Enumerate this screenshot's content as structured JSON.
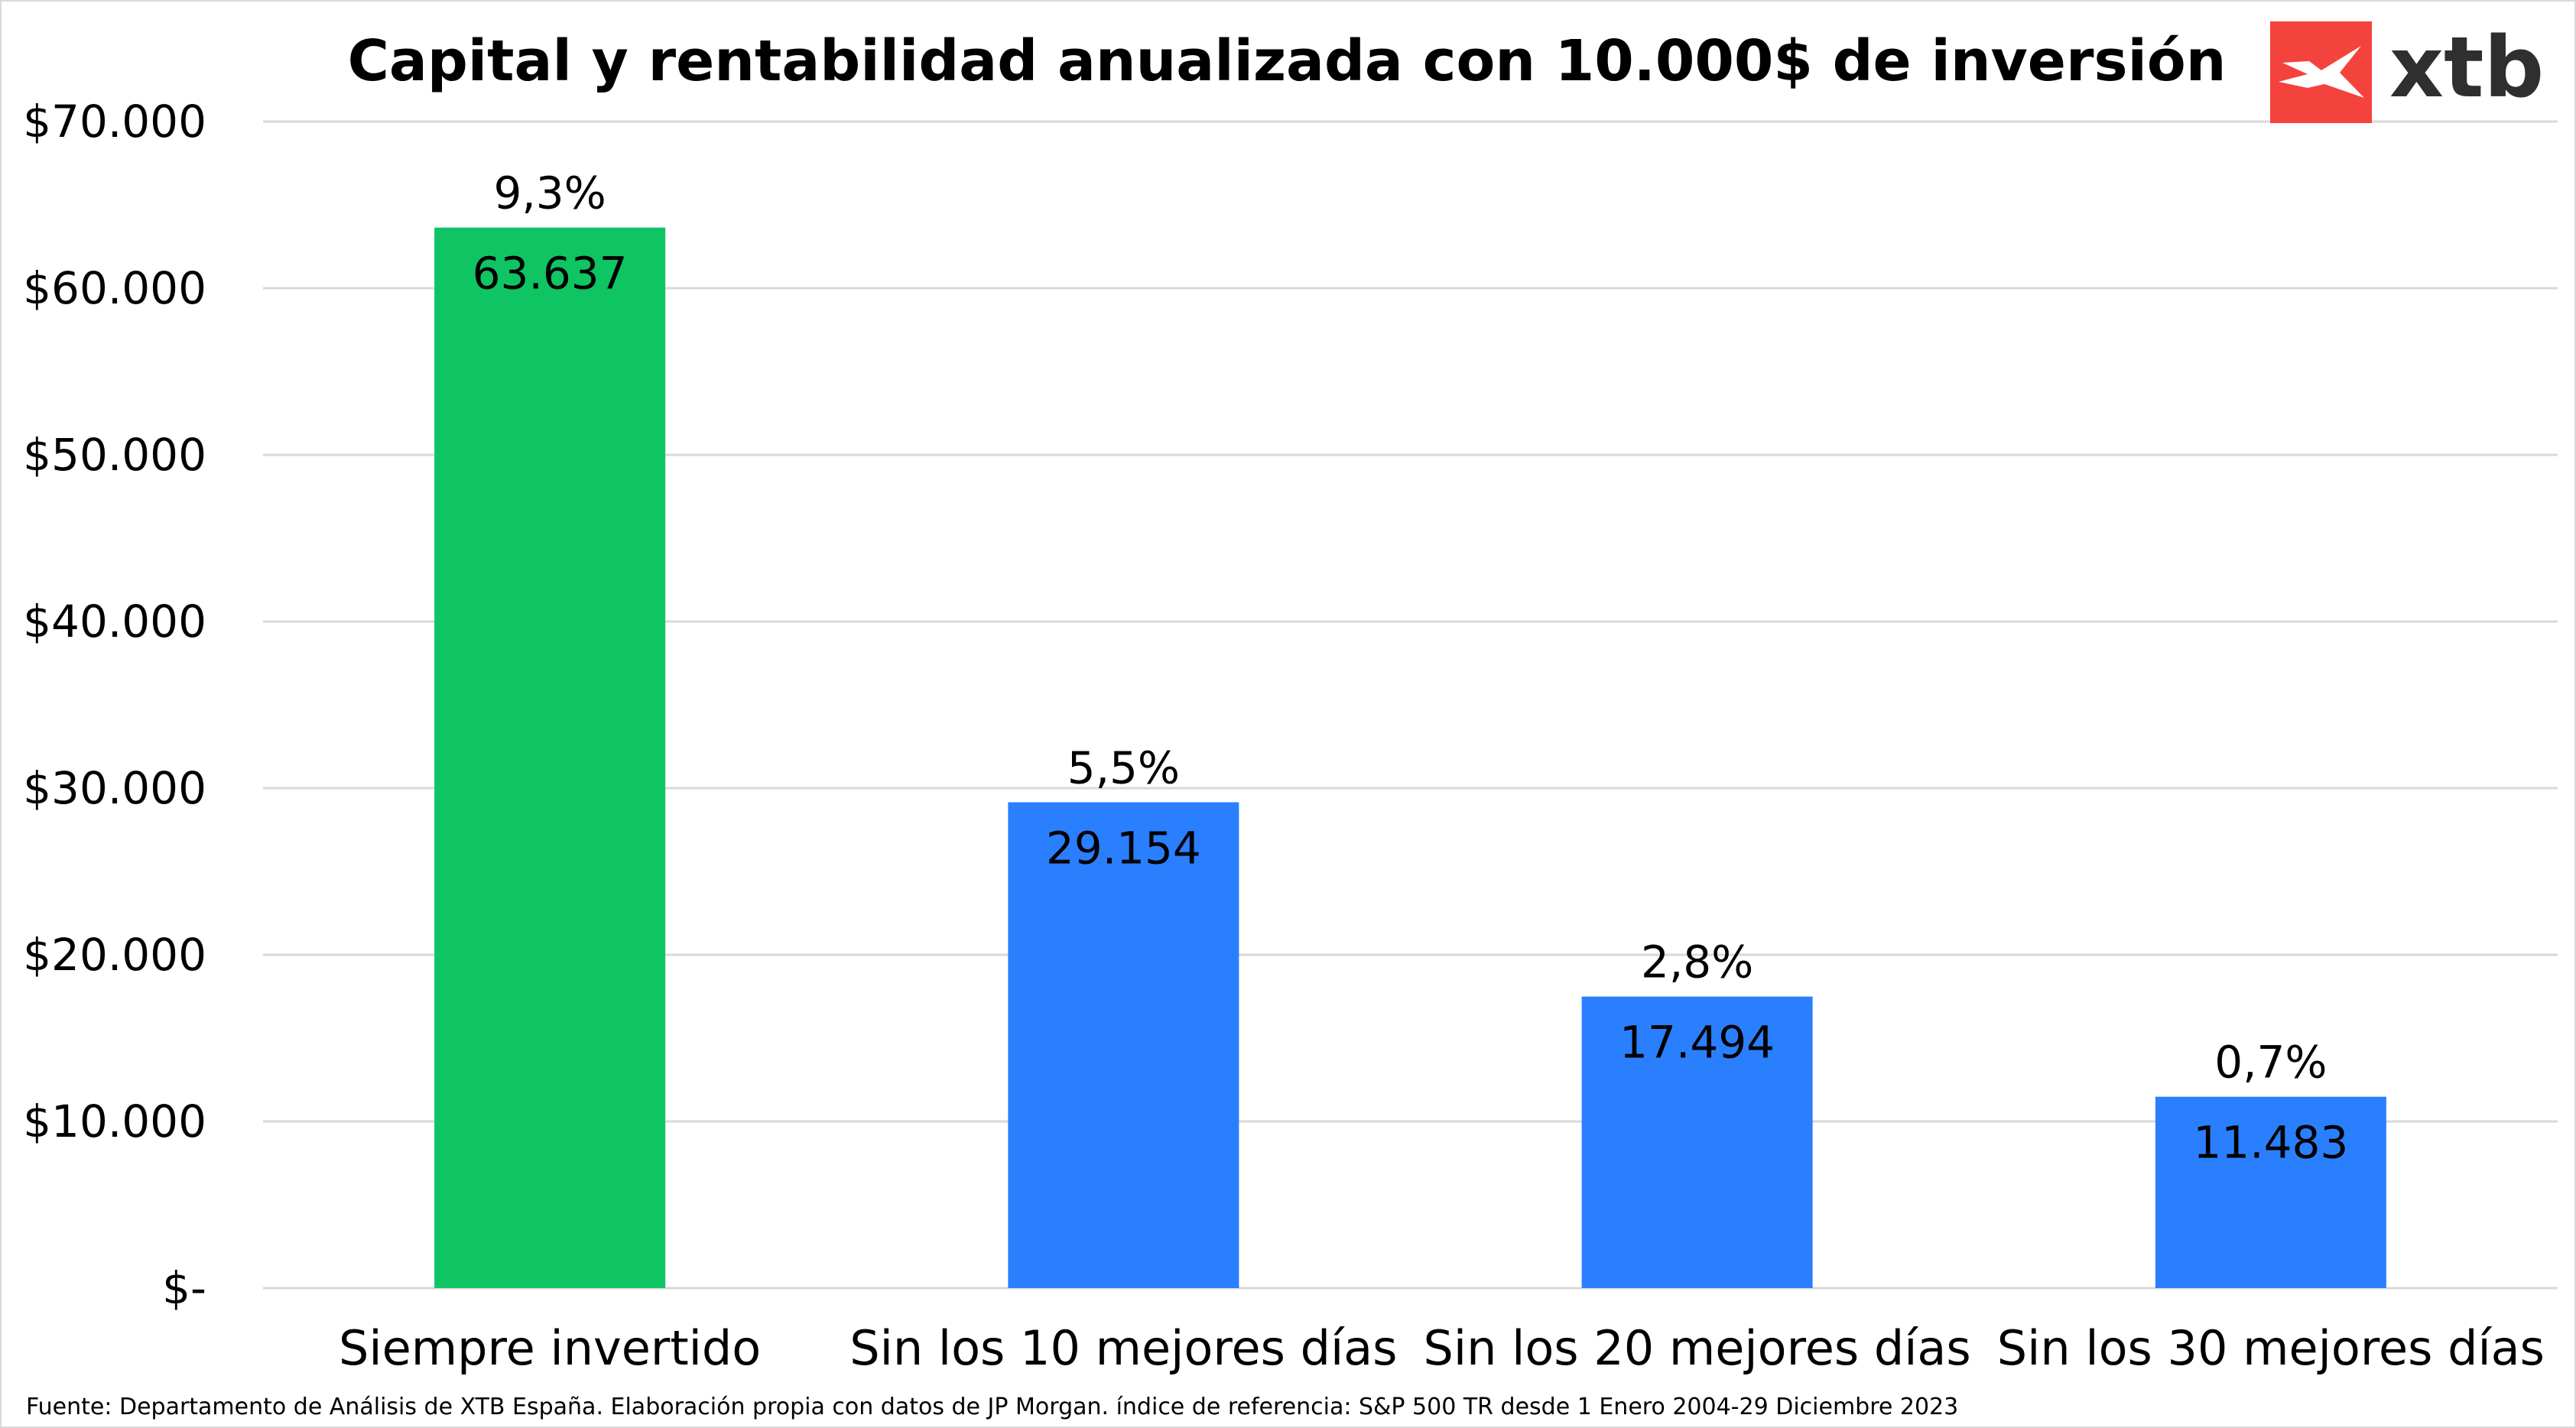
{
  "chart_data": {
    "type": "bar",
    "title": "Capital y rentabilidad anualizada con 10.000$ de inversión",
    "categories": [
      "Siempre invertido",
      "Sin los 10 mejores días",
      "Sin los 20 mejores días",
      "Sin los 30 mejores días"
    ],
    "values": [
      63637,
      29154,
      17494,
      11483
    ],
    "value_labels": [
      "63.637",
      "29.154",
      "17.494",
      "11.483"
    ],
    "return_labels": [
      "9,3%",
      "5,5%",
      "2,8%",
      "0,7%"
    ],
    "bar_colors": [
      "#0fc463",
      "#2a7fff",
      "#2a7fff",
      "#2a7fff"
    ],
    "ylim": [
      0,
      70000
    ],
    "y_ticks": [
      0,
      10000,
      20000,
      30000,
      40000,
      50000,
      60000,
      70000
    ],
    "y_tick_labels": [
      "$-",
      "$10.000",
      "$20.000",
      "$30.000",
      "$40.000",
      "$50.000",
      "$60.000",
      "$70.000"
    ],
    "grid": true,
    "legend": "none",
    "xlabel": "",
    "ylabel": ""
  },
  "footer": {
    "source": "Fuente: Departamento de Análisis de XTB España. Elaboración propia con datos de JP Morgan. índice de referencia: S&P 500 TR desde 1 Enero 2004-29 Diciembre 2023"
  },
  "logo": {
    "text": "xtb",
    "color": "#f4433c"
  }
}
